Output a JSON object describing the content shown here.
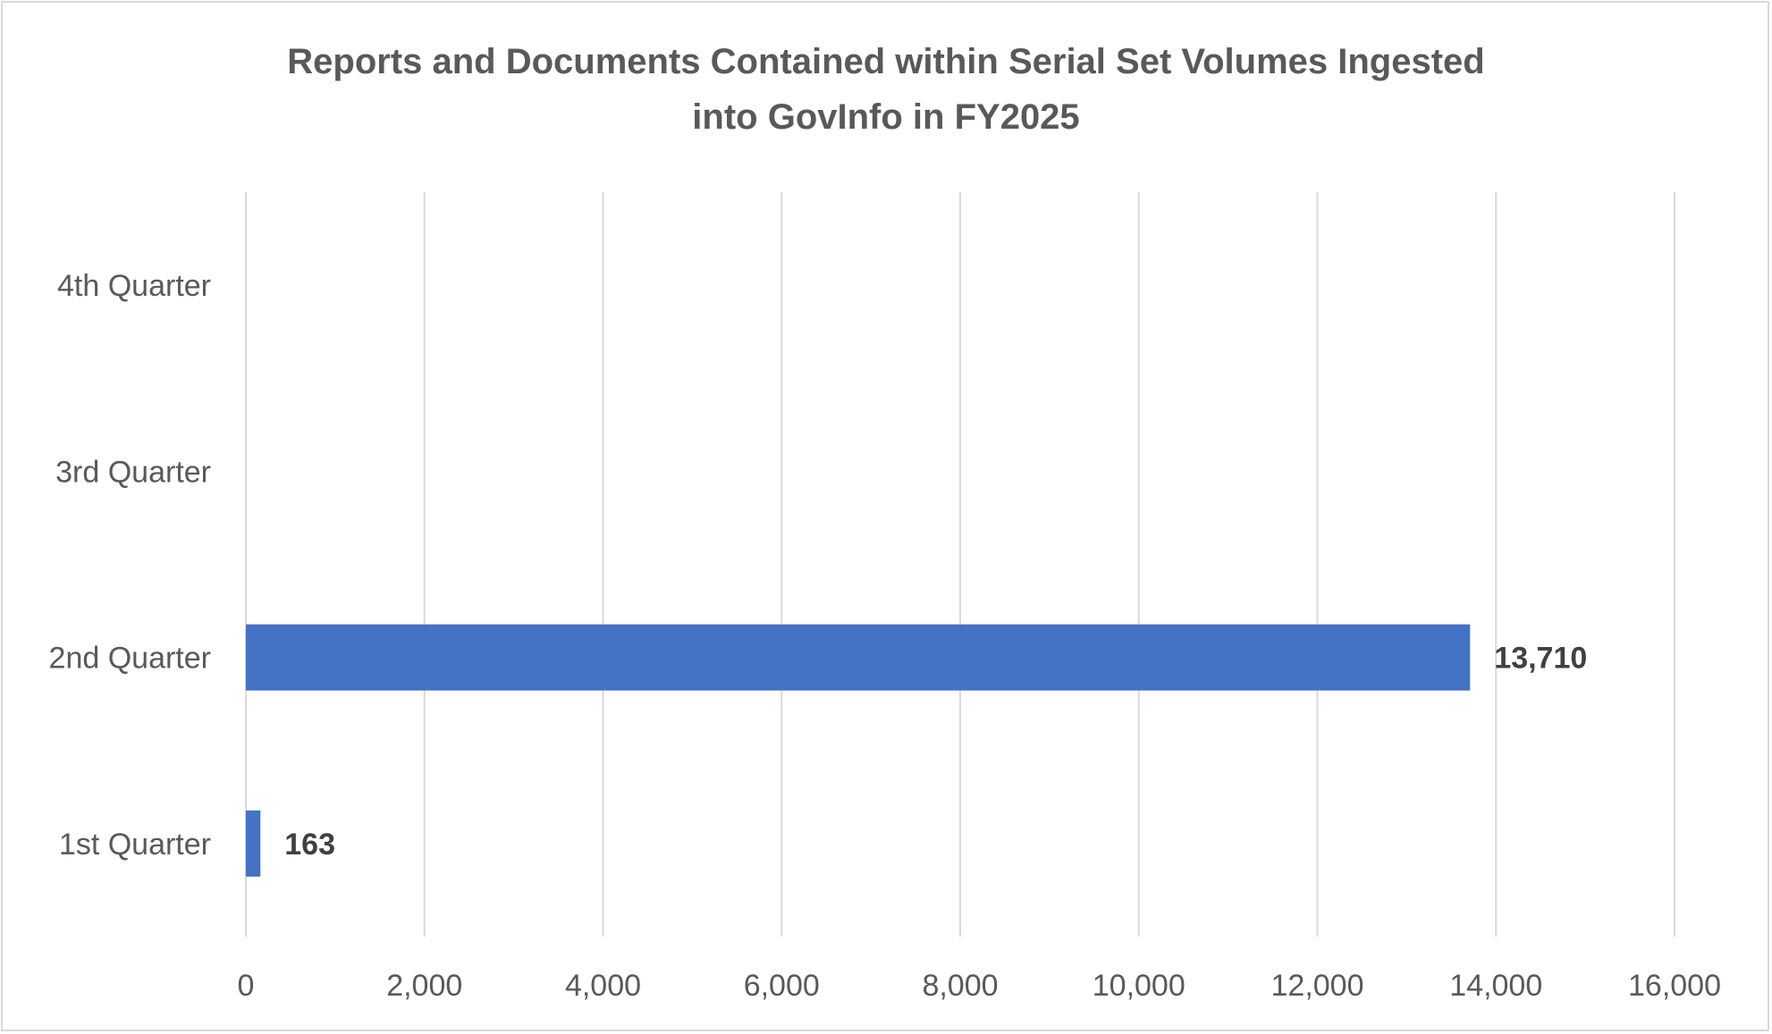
{
  "chart_data": {
    "type": "bar",
    "orientation": "horizontal",
    "title": "Reports and Documents Contained within Serial Set Volumes Ingested\ninto GovInfo in FY2025",
    "categories": [
      "1st Quarter",
      "2nd Quarter",
      "3rd Quarter",
      "4th Quarter"
    ],
    "values": [
      163,
      13710,
      null,
      null
    ],
    "data_labels": [
      "163",
      "13,710",
      "",
      ""
    ],
    "xlim": [
      0,
      16000
    ],
    "x_ticks": [
      0,
      2000,
      4000,
      6000,
      8000,
      10000,
      12000,
      14000,
      16000
    ],
    "x_tick_labels": [
      "0",
      "2,000",
      "4,000",
      "6,000",
      "8,000",
      "10,000",
      "12,000",
      "14,000",
      "16,000"
    ],
    "xlabel": "",
    "ylabel": "",
    "grid": true,
    "legend": "none",
    "bar_color": "#4472c4",
    "gridline_color": "#d9d9d9",
    "text_color": "#595959"
  }
}
